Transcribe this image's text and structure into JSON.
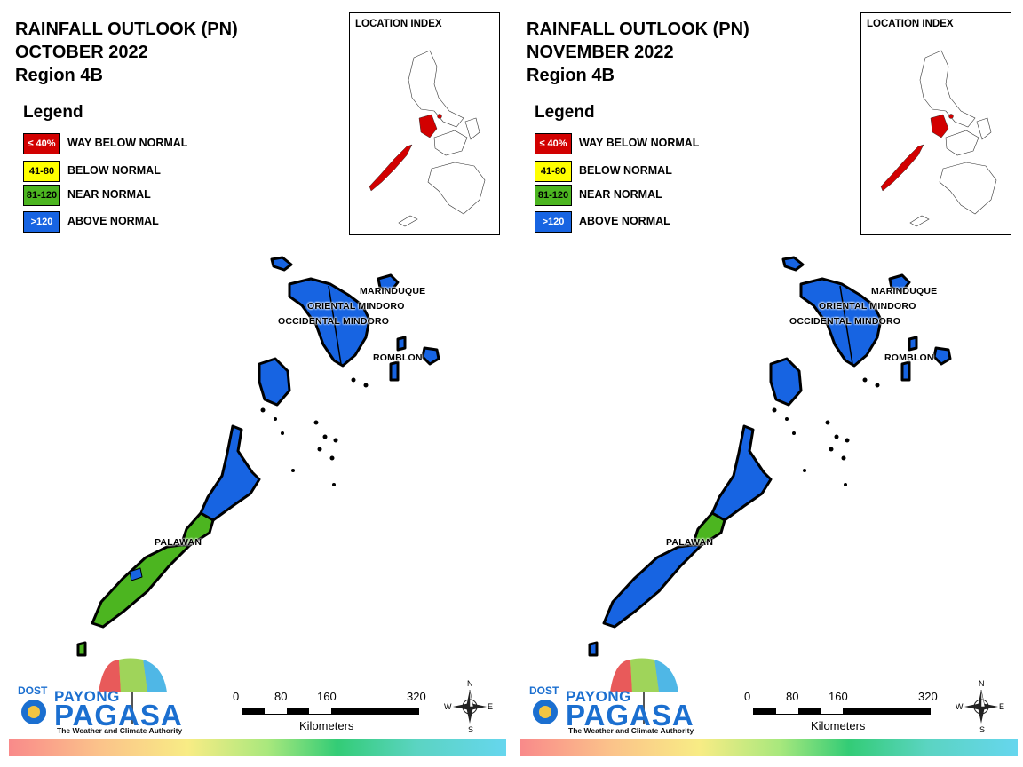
{
  "colors": {
    "way_below_normal": "#d20000",
    "below_normal": "#ffff00",
    "near_normal": "#4cb520",
    "above_normal": "#1764e2",
    "brand_blue": "#1b6fd0"
  },
  "legend": {
    "title": "Legend",
    "items": [
      {
        "range": "≤ 40%",
        "label": "WAY BELOW NORMAL"
      },
      {
        "range": "41-80",
        "label": "BELOW NORMAL"
      },
      {
        "range": "81-120",
        "label": "NEAR NORMAL"
      },
      {
        "range": ">120",
        "label": "ABOVE NORMAL"
      }
    ]
  },
  "location_index": {
    "title": "LOCATION INDEX"
  },
  "panels": [
    {
      "title": "RAINFALL OUTLOOK (PN)",
      "month": "OCTOBER 2022",
      "region": "Region 4B",
      "provinces": [
        {
          "name": "MARINDUQUE",
          "category": "above_normal"
        },
        {
          "name": "ORIENTAL MINDORO",
          "category": "above_normal"
        },
        {
          "name": "OCCIDENTAL MINDORO",
          "category": "above_normal"
        },
        {
          "name": "ROMBLON",
          "category": "above_normal"
        },
        {
          "name": "PALAWAN",
          "category": "above_normal / near_normal (south)"
        }
      ]
    },
    {
      "title": "RAINFALL OUTLOOK (PN)",
      "month": "NOVEMBER 2022",
      "region": "Region 4B",
      "provinces": [
        {
          "name": "MARINDUQUE",
          "category": "above_normal"
        },
        {
          "name": "ORIENTAL MINDORO",
          "category": "above_normal"
        },
        {
          "name": "OCCIDENTAL MINDORO",
          "category": "above_normal"
        },
        {
          "name": "ROMBLON",
          "category": "above_normal"
        },
        {
          "name": "PALAWAN",
          "category": "above_normal / near_normal (central)"
        }
      ]
    }
  ],
  "scale": {
    "ticks": [
      "0",
      "80",
      "160",
      "320"
    ],
    "unit": "Kilometers"
  },
  "compass": {
    "n": "N",
    "s": "S",
    "e": "E",
    "w": "W"
  },
  "logo": {
    "dost": "DOST",
    "payong": "PAYONG",
    "pagasa": "PAGASA",
    "tagline": "The Weather and Climate Authority"
  }
}
